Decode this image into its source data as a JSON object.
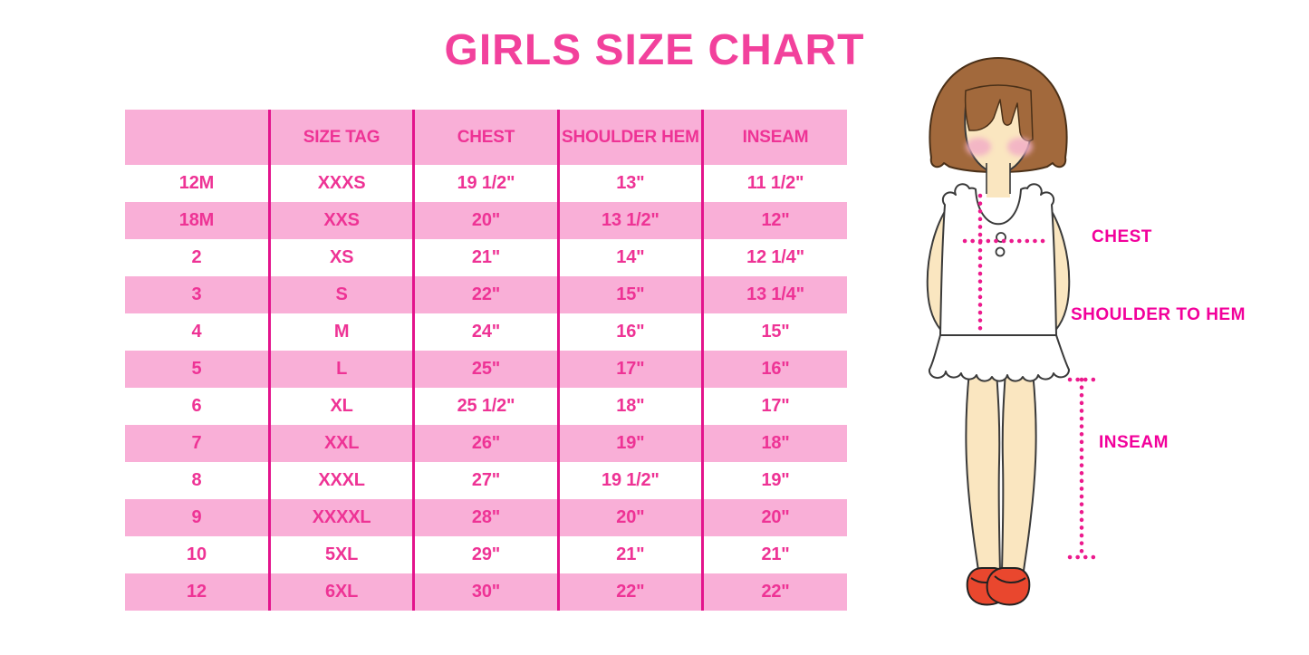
{
  "page": {
    "title": "GIRLS SIZE CHART"
  },
  "colors": {
    "title_pink": "#F2419C",
    "row_pink": "#F9AFD7",
    "grid_magenta": "#E3148C",
    "table_text_pink": "#EE3395",
    "label_magenta": "#F2009B",
    "dotted_magenta": "#EC1A8D",
    "hair_brown": "#A2693C",
    "skin": "#FAE6C0",
    "blush": "#F2AEC6",
    "shoe_red": "#E9472E"
  },
  "chart_data": {
    "type": "table",
    "title": "GIRLS SIZE CHART",
    "columns": [
      "",
      "SIZE TAG",
      "CHEST",
      "SHOULDER HEM",
      "INSEAM"
    ],
    "rows": [
      [
        "12M",
        "XXXS",
        "19 1/2\"",
        "13\"",
        "11 1/2\""
      ],
      [
        "18M",
        "XXS",
        "20\"",
        "13 1/2\"",
        "12\""
      ],
      [
        "2",
        "XS",
        "21\"",
        "14\"",
        "12 1/4\""
      ],
      [
        "3",
        "S",
        "22\"",
        "15\"",
        "13 1/4\""
      ],
      [
        "4",
        "M",
        "24\"",
        "16\"",
        "15\""
      ],
      [
        "5",
        "L",
        "25\"",
        "17\"",
        "16\""
      ],
      [
        "6",
        "XL",
        "25 1/2\"",
        "18\"",
        "17\""
      ],
      [
        "7",
        "XXL",
        "26\"",
        "19\"",
        "18\""
      ],
      [
        "8",
        "XXXL",
        "27\"",
        "19 1/2\"",
        "19\""
      ],
      [
        "9",
        "XXXXL",
        "28\"",
        "20\"",
        "20\""
      ],
      [
        "10",
        "5XL",
        "29\"",
        "21\"",
        "21\""
      ],
      [
        "12",
        "6XL",
        "30\"",
        "22\"",
        "22\""
      ]
    ],
    "legend_position": "none",
    "grid": "vertical-magenta-lines, alternating pink/white row bands"
  },
  "figure": {
    "description": "illustration of girl showing measurement lines",
    "labels": {
      "chest": "CHEST",
      "shoulder_to_hem": "SHOULDER TO HEM",
      "inseam": "INSEAM"
    }
  }
}
